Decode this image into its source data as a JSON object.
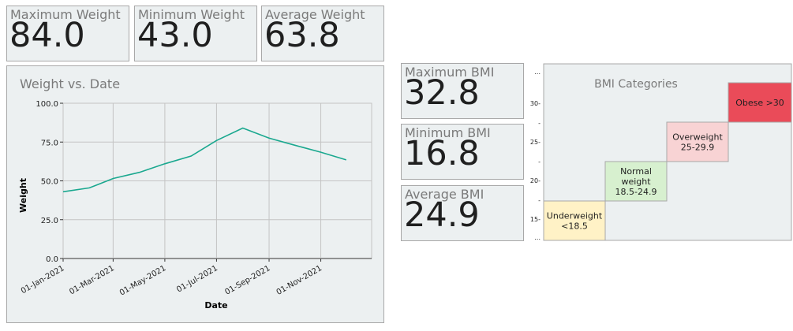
{
  "weight_stats": [
    {
      "label": "Maximum Weight",
      "value": "84.0"
    },
    {
      "label": "Minimum Weight",
      "value": "43.0"
    },
    {
      "label": "Average Weight",
      "value": "63.8"
    }
  ],
  "bmi_stats": [
    {
      "label": "Maximum BMI",
      "value": "32.8"
    },
    {
      "label": "Minimum BMI",
      "value": "16.8"
    },
    {
      "label": "Average BMI",
      "value": "24.9"
    }
  ],
  "chart_data": [
    {
      "type": "line",
      "title": "Weight vs. Date",
      "xlabel": "Date",
      "ylabel": "Weight",
      "ylim": [
        0,
        100
      ],
      "yticks": [
        "0.0",
        "25.0",
        "50.0",
        "75.0",
        "100.0"
      ],
      "xticks": [
        "01-Jan-2021",
        "01-Mar-2021",
        "01-May-2021",
        "01-Jul-2021",
        "01-Sep-2021",
        "01-Nov-2021"
      ],
      "grid": true,
      "color": "#1aa88f",
      "x": [
        "2021-01-01",
        "2021-02-01",
        "2021-03-01",
        "2021-04-01",
        "2021-05-01",
        "2021-06-01",
        "2021-07-01",
        "2021-08-01",
        "2021-09-01",
        "2021-10-01",
        "2021-11-01",
        "2021-12-01"
      ],
      "values": [
        43.0,
        45.5,
        51.5,
        55.5,
        61.0,
        66.0,
        76.0,
        84.0,
        77.5,
        73.0,
        68.5,
        63.5
      ]
    },
    {
      "type": "heatmap",
      "title": "BMI Categories",
      "yticks": [
        "...",
        "15-",
        "-",
        "20-",
        "-",
        "25-",
        "-",
        "30-",
        "..."
      ],
      "categories": [
        {
          "lines": [
            "Underweight",
            "<18.5"
          ],
          "color": "#fff2c6"
        },
        {
          "lines": [
            "Normal",
            "weight",
            "18.5-24.9"
          ],
          "color": "#d7f0cf"
        },
        {
          "lines": [
            "Overweight",
            "25-29.9"
          ],
          "color": "#f8d3d4"
        },
        {
          "lines": [
            "Obese >30"
          ],
          "color": "#ea4b59"
        }
      ]
    }
  ]
}
